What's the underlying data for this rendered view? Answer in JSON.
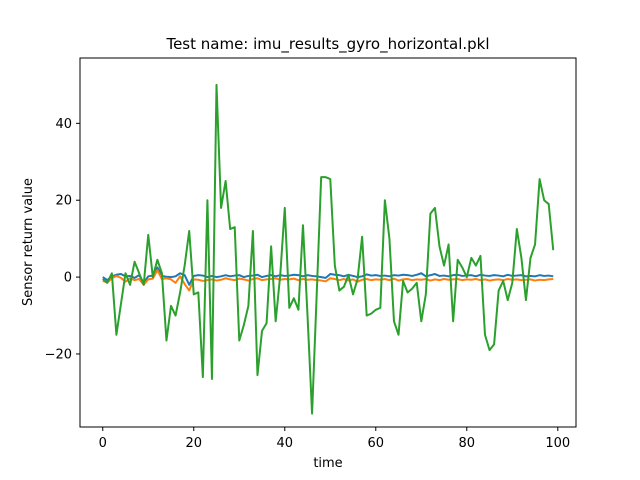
{
  "chart_data": {
    "type": "line",
    "title": "Test name: imu_results_gyro_horizontal.pkl",
    "xlabel": "time",
    "ylabel": "Sensor return value",
    "xlim": [
      -5,
      104
    ],
    "ylim": [
      -39,
      57
    ],
    "x_ticks": [
      0,
      20,
      40,
      60,
      80,
      100
    ],
    "y_ticks": [
      -20,
      0,
      20,
      40
    ],
    "y_tick_labels": [
      "−20",
      "0",
      "20",
      "40"
    ],
    "grid": false,
    "legend": "none",
    "x": [
      0,
      1,
      2,
      3,
      4,
      5,
      6,
      7,
      8,
      9,
      10,
      11,
      12,
      13,
      14,
      15,
      16,
      17,
      18,
      19,
      20,
      21,
      22,
      23,
      24,
      25,
      26,
      27,
      28,
      29,
      30,
      31,
      32,
      33,
      34,
      35,
      36,
      37,
      38,
      39,
      40,
      41,
      42,
      43,
      44,
      45,
      46,
      47,
      48,
      49,
      50,
      51,
      52,
      53,
      54,
      55,
      56,
      57,
      58,
      59,
      60,
      61,
      62,
      63,
      64,
      65,
      66,
      67,
      68,
      69,
      70,
      71,
      72,
      73,
      74,
      75,
      76,
      77,
      78,
      79,
      80,
      81,
      82,
      83,
      84,
      85,
      86,
      87,
      88,
      89,
      90,
      91,
      92,
      93,
      94,
      95,
      96,
      97,
      98,
      99
    ],
    "series": [
      {
        "color": "#1f77b4",
        "values": [
          0.0,
          -0.8,
          0.2,
          0.6,
          0.8,
          0.2,
          0.3,
          -0.2,
          0.5,
          -1.5,
          0.2,
          0.4,
          2.5,
          0.3,
          0.1,
          0.0,
          0.2,
          1.0,
          0.5,
          -2.0,
          0.3,
          0.5,
          0.4,
          0.0,
          0.3,
          0.0,
          0.2,
          0.5,
          0.2,
          0.4,
          0.5,
          0.0,
          0.3,
          0.4,
          0.6,
          0.0,
          0.3,
          0.5,
          0.2,
          0.5,
          0.3,
          0.4,
          0.6,
          0.5,
          0.2,
          0.5,
          0.3,
          0.2,
          0.0,
          -0.2,
          0.8,
          0.6,
          0.5,
          0.2,
          0.6,
          0.3,
          0.0,
          0.2,
          0.7,
          0.4,
          0.5,
          0.3,
          0.4,
          0.2,
          0.5,
          0.4,
          0.6,
          0.5,
          0.3,
          0.6,
          1.0,
          0.2,
          0.5,
          0.8,
          0.3,
          0.4,
          0.2,
          0.5,
          0.6,
          0.3,
          0.4,
          0.5,
          0.2,
          0.6,
          0.4,
          0.3,
          0.5,
          0.4,
          0.2,
          0.6,
          0.3,
          0.4,
          0.5,
          0.2,
          0.3,
          0.2,
          0.5,
          0.3,
          0.4,
          0.2
        ]
      },
      {
        "color": "#ff7f0e",
        "values": [
          -1.0,
          -1.4,
          -0.3,
          0.3,
          -0.2,
          -1.2,
          -0.3,
          -0.8,
          -0.5,
          -2.0,
          -0.6,
          -0.4,
          1.8,
          -0.5,
          -0.3,
          -0.6,
          -1.5,
          0.2,
          -1.8,
          -3.5,
          -0.6,
          -0.7,
          -1.0,
          -0.8,
          -0.6,
          -0.9,
          -0.7,
          -0.3,
          -0.6,
          -0.8,
          -0.4,
          -0.6,
          -0.9,
          -0.5,
          -0.3,
          -0.8,
          -0.6,
          -0.5,
          -0.3,
          -0.7,
          -0.5,
          -0.6,
          -0.4,
          -0.8,
          -0.5,
          -0.7,
          -0.6,
          -0.8,
          -0.9,
          -1.1,
          -0.3,
          -0.5,
          -0.8,
          -0.5,
          -0.9,
          -0.6,
          -1.2,
          -0.7,
          -0.5,
          -0.8,
          -0.6,
          -0.7,
          -0.5,
          -0.8,
          -0.4,
          -0.9,
          -0.6,
          -0.5,
          -0.8,
          -0.6,
          -0.7,
          -0.5,
          -0.9,
          -0.6,
          -0.8,
          -0.5,
          -0.7,
          -0.6,
          -0.5,
          -0.8,
          -0.6,
          -0.7,
          -0.5,
          -0.8,
          -0.6,
          -0.9,
          -0.7,
          -0.6,
          -0.8,
          -0.5,
          -0.7,
          -0.6,
          -0.8,
          -0.7,
          -0.6,
          -0.9,
          -0.7,
          -0.8,
          -0.6,
          -0.5
        ]
      },
      {
        "color": "#2ca02c",
        "values": [
          -0.5,
          -1.5,
          1.0,
          -15.0,
          -7.0,
          1.0,
          -2.0,
          4.0,
          1.0,
          -2.0,
          11.0,
          0.0,
          4.5,
          1.0,
          -16.5,
          -7.5,
          -10.0,
          -4.0,
          3.0,
          12.0,
          -4.5,
          -4.0,
          -26.0,
          20.0,
          -26.5,
          50.0,
          18.0,
          25.0,
          12.5,
          13.0,
          -16.5,
          -12.5,
          -7.5,
          12.0,
          -25.5,
          -14.0,
          -12.0,
          8.0,
          -11.5,
          0.5,
          18.0,
          -8.0,
          -5.5,
          -8.5,
          13.5,
          -10.0,
          -35.5,
          -5.0,
          26.0,
          26.0,
          25.5,
          3.0,
          -3.5,
          -2.5,
          0.5,
          -4.5,
          -0.5,
          10.5,
          -10.0,
          -9.5,
          -8.5,
          -8.0,
          20.0,
          10.0,
          -11.5,
          -15.0,
          -1.0,
          -4.0,
          -3.0,
          -1.5,
          -11.5,
          -4.5,
          16.5,
          18.0,
          8.0,
          3.0,
          8.5,
          -11.5,
          4.5,
          2.5,
          0.0,
          5.0,
          3.0,
          5.5,
          -15.0,
          -19.0,
          -17.5,
          -3.5,
          -1.0,
          -6.0,
          -1.5,
          12.5,
          5.0,
          -6.0,
          5.0,
          8.5,
          25.5,
          20.0,
          19.0,
          7.0
        ]
      }
    ]
  }
}
